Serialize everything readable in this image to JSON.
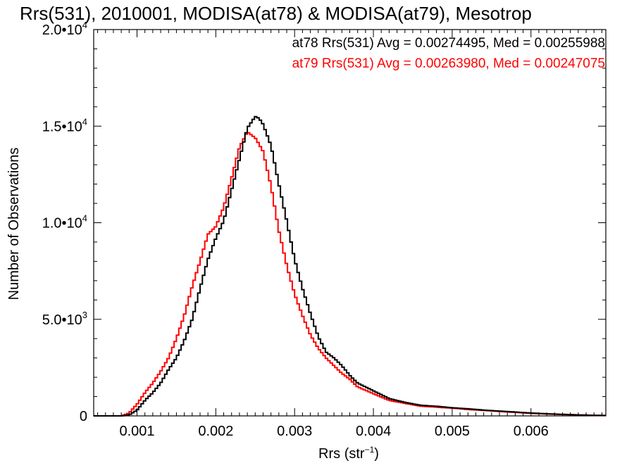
{
  "chart_data": {
    "type": "line",
    "title": "Rrs(531), 2010001, MODISA(at78) & MODISA(at79), Mesotrop",
    "xlabel_base": "Rrs (str",
    "xlabel_sup": "−1",
    "xlabel_end": ")",
    "ylabel": "Number of Observations",
    "xlim": [
      0.00045,
      0.00695
    ],
    "ylim": [
      0,
      20000
    ],
    "x_ticks": [
      {
        "value": 0.001,
        "label": "0.001"
      },
      {
        "value": 0.002,
        "label": "0.002"
      },
      {
        "value": 0.003,
        "label": "0.003"
      },
      {
        "value": 0.004,
        "label": "0.004"
      },
      {
        "value": 0.005,
        "label": "0.005"
      },
      {
        "value": 0.006,
        "label": "0.006"
      }
    ],
    "y_ticks": [
      {
        "value": 0,
        "base": "0",
        "exp": ""
      },
      {
        "value": 5000,
        "base": "5.0•10",
        "exp": "3"
      },
      {
        "value": 10000,
        "base": "1.0•10",
        "exp": "4"
      },
      {
        "value": 15000,
        "base": "1.5•10",
        "exp": "4"
      },
      {
        "value": 20000,
        "base": "2.0•10",
        "exp": "4"
      }
    ],
    "series": [
      {
        "name": "at78",
        "legend": "at78 Rrs(531) Avg = 0.00274495, Med = 0.00255988",
        "color": "#000000",
        "points": [
          [
            0.00045,
            0
          ],
          [
            0.0008,
            0
          ],
          [
            0.0009,
            50
          ],
          [
            0.001,
            300
          ],
          [
            0.0011,
            800
          ],
          [
            0.0012,
            1200
          ],
          [
            0.0013,
            1700
          ],
          [
            0.0014,
            2400
          ],
          [
            0.0015,
            3000
          ],
          [
            0.0016,
            3900
          ],
          [
            0.0017,
            5000
          ],
          [
            0.0018,
            6600
          ],
          [
            0.0019,
            8100
          ],
          [
            0.002,
            9200
          ],
          [
            0.0021,
            10100
          ],
          [
            0.0022,
            11700
          ],
          [
            0.0023,
            13300
          ],
          [
            0.0024,
            14900
          ],
          [
            0.0025,
            15500
          ],
          [
            0.00255,
            15400
          ],
          [
            0.0026,
            15100
          ],
          [
            0.0027,
            14000
          ],
          [
            0.0028,
            12000
          ],
          [
            0.0029,
            10100
          ],
          [
            0.003,
            8100
          ],
          [
            0.0031,
            6600
          ],
          [
            0.0032,
            5300
          ],
          [
            0.0033,
            4100
          ],
          [
            0.0034,
            3300
          ],
          [
            0.0035,
            3000
          ],
          [
            0.0036,
            2600
          ],
          [
            0.0037,
            2100
          ],
          [
            0.0038,
            1700
          ],
          [
            0.004,
            1300
          ],
          [
            0.0042,
            900
          ],
          [
            0.0044,
            700
          ],
          [
            0.0046,
            550
          ],
          [
            0.0048,
            500
          ],
          [
            0.005,
            420
          ],
          [
            0.0052,
            370
          ],
          [
            0.0054,
            300
          ],
          [
            0.0056,
            250
          ],
          [
            0.0058,
            200
          ],
          [
            0.006,
            150
          ],
          [
            0.0062,
            110
          ],
          [
            0.0064,
            80
          ],
          [
            0.0066,
            50
          ],
          [
            0.0068,
            30
          ],
          [
            0.00695,
            20
          ]
        ]
      },
      {
        "name": "at79",
        "legend": "at79 Rrs(531) Avg = 0.00263980, Med = 0.00247075",
        "color": "#ff0000",
        "points": [
          [
            0.00045,
            0
          ],
          [
            0.0008,
            0
          ],
          [
            0.0009,
            150
          ],
          [
            0.001,
            600
          ],
          [
            0.0011,
            1200
          ],
          [
            0.0012,
            1700
          ],
          [
            0.0013,
            2300
          ],
          [
            0.0014,
            3000
          ],
          [
            0.0015,
            4000
          ],
          [
            0.0016,
            5200
          ],
          [
            0.0017,
            6700
          ],
          [
            0.0018,
            8000
          ],
          [
            0.0019,
            9400
          ],
          [
            0.002,
            9800
          ],
          [
            0.0021,
            10800
          ],
          [
            0.0022,
            12300
          ],
          [
            0.0023,
            13900
          ],
          [
            0.0024,
            14700
          ],
          [
            0.0025,
            14400
          ],
          [
            0.0026,
            13700
          ],
          [
            0.0027,
            11900
          ],
          [
            0.0028,
            9600
          ],
          [
            0.0029,
            7800
          ],
          [
            0.003,
            6300
          ],
          [
            0.0031,
            5200
          ],
          [
            0.0032,
            4200
          ],
          [
            0.0033,
            3500
          ],
          [
            0.0034,
            3000
          ],
          [
            0.0035,
            2600
          ],
          [
            0.0036,
            2200
          ],
          [
            0.0037,
            1900
          ],
          [
            0.0038,
            1500
          ],
          [
            0.004,
            1150
          ],
          [
            0.0042,
            800
          ],
          [
            0.0044,
            650
          ],
          [
            0.0046,
            500
          ],
          [
            0.0048,
            450
          ],
          [
            0.005,
            400
          ],
          [
            0.0052,
            330
          ],
          [
            0.0054,
            280
          ],
          [
            0.0056,
            230
          ],
          [
            0.0058,
            180
          ],
          [
            0.006,
            130
          ],
          [
            0.0062,
            100
          ],
          [
            0.0064,
            70
          ],
          [
            0.0066,
            50
          ],
          [
            0.0068,
            30
          ],
          [
            0.00695,
            20
          ]
        ]
      }
    ],
    "legend_position": "top-right"
  }
}
